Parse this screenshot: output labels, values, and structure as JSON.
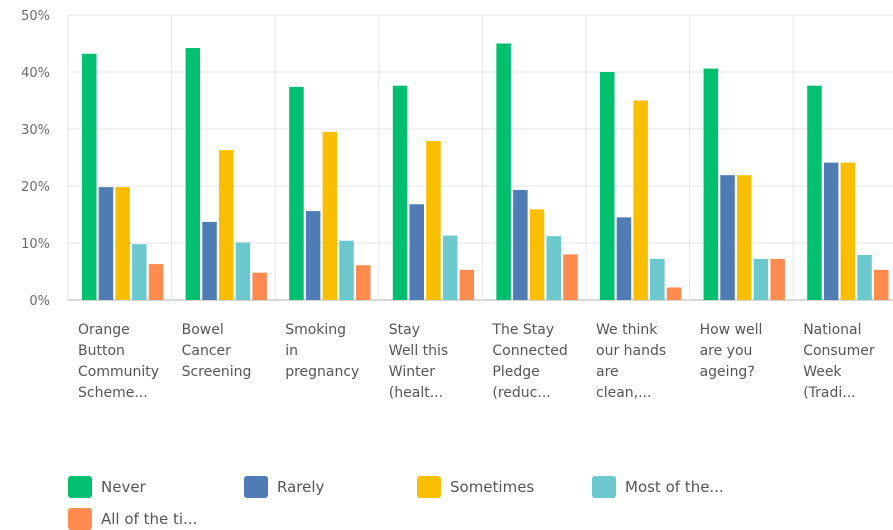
{
  "chart_data": {
    "type": "bar",
    "ylim": [
      0,
      50
    ],
    "yticks": [
      "0%",
      "10%",
      "20%",
      "30%",
      "40%",
      "50%"
    ],
    "grid": true,
    "legend_position": "bottom-left",
    "categories": [
      "Orange\nButton\nCommunity\nScheme...",
      "Bowel\nCancer\nScreening",
      "Smoking\nin\npregnancy",
      "Stay\nWell this\nWinter\n(healt...",
      "The Stay\nConnected\nPledge\n(reduc...",
      "We think\nour hands\nare\nclean,...",
      "How well\nare you\nageing?",
      "National\nConsumer\nWeek\n(Tradi..."
    ],
    "series": [
      {
        "name": "Never",
        "color": "#00bf6f",
        "values": [
          43.2,
          44.2,
          37.4,
          37.6,
          45.0,
          40.0,
          40.6,
          37.6
        ]
      },
      {
        "name": "Rarely",
        "color": "#507cb6",
        "values": [
          19.8,
          13.7,
          15.6,
          16.8,
          19.3,
          14.5,
          21.9,
          24.1
        ]
      },
      {
        "name": "Sometimes",
        "color": "#f9be00",
        "values": [
          19.8,
          26.3,
          29.5,
          27.9,
          15.9,
          35.0,
          21.9,
          24.1
        ]
      },
      {
        "name": "Most of the...",
        "color": "#6bc8cd",
        "values": [
          9.8,
          10.1,
          10.4,
          11.3,
          11.2,
          7.2,
          7.2,
          7.9
        ]
      },
      {
        "name": "All of the ti...",
        "color": "#ff8b4f",
        "values": [
          6.3,
          4.8,
          6.1,
          5.3,
          8.0,
          2.2,
          7.2,
          5.3
        ]
      }
    ]
  }
}
